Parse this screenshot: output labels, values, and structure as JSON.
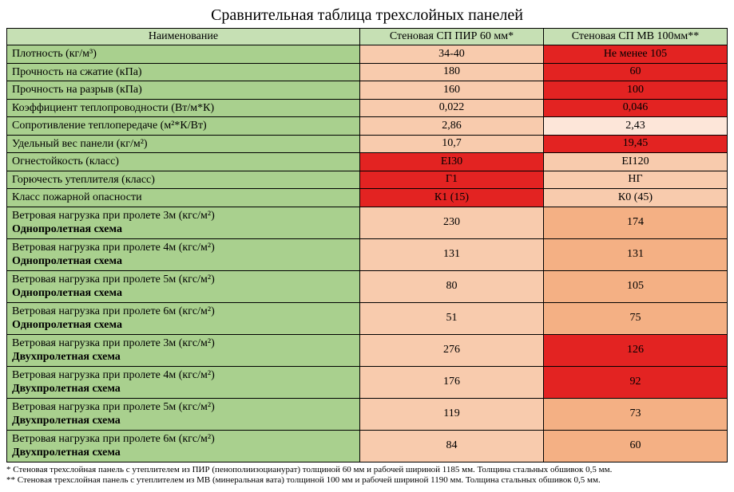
{
  "title": "Сравнительная таблица трехслойных панелей",
  "colors": {
    "header_green": "#c6e0b4",
    "label_green": "#a9d08e",
    "light_orange": "#f8cbad",
    "mid_orange": "#f4b084",
    "dark_red": "#e32322",
    "pale_pink": "#fde6d9",
    "border": "#000000",
    "text": "#000000"
  },
  "columns": {
    "name": "Наименование",
    "col_a": "Стеновая СП ПИР 60 мм*",
    "col_b": "Стеновая СП МВ 100мм**"
  },
  "rows": [
    {
      "kind": "single",
      "label": "Плотность (кг/м³)",
      "a": "34-40",
      "a_fill": "light_orange",
      "b": "Не менее 105",
      "b_fill": "dark_red"
    },
    {
      "kind": "single",
      "label": "Прочность на сжатие (кПа)",
      "a": "180",
      "a_fill": "light_orange",
      "b": "60",
      "b_fill": "dark_red"
    },
    {
      "kind": "single",
      "label": "Прочность на разрыв (кПа)",
      "a": "160",
      "a_fill": "light_orange",
      "b": "100",
      "b_fill": "dark_red"
    },
    {
      "kind": "single",
      "label": "Коэффициент теплопроводности (Вт/м*К)",
      "a": "0,022",
      "a_fill": "light_orange",
      "b": "0,046",
      "b_fill": "dark_red"
    },
    {
      "kind": "single",
      "label": "Сопротивление теплопередаче (м²*К/Вт)",
      "a": "2,86",
      "a_fill": "light_orange",
      "b": "2,43",
      "b_fill": "pale_pink"
    },
    {
      "kind": "single",
      "label": "Удельный вес панели (кг/м²)",
      "a": "10,7",
      "a_fill": "light_orange",
      "b": "19,45",
      "b_fill": "dark_red"
    },
    {
      "kind": "single",
      "label": "Огнестойкость (класс)",
      "a": "EI30",
      "a_fill": "dark_red",
      "b": "EI120",
      "b_fill": "light_orange"
    },
    {
      "kind": "single",
      "label": "Горючесть утеплителя (класс)",
      "a": "Г1",
      "a_fill": "dark_red",
      "b": "НГ",
      "b_fill": "light_orange"
    },
    {
      "kind": "single",
      "label": "Класс пожарной опасности",
      "a": "К1 (15)",
      "a_fill": "dark_red",
      "b": "К0 (45)",
      "b_fill": "light_orange"
    },
    {
      "kind": "double",
      "l1": "Ветровая нагрузка при пролете 3м (кгс/м²)",
      "l2": "Однопролетная схема",
      "a": "230",
      "a_fill": "light_orange",
      "b": "174",
      "b_fill": "mid_orange"
    },
    {
      "kind": "double",
      "l1": "Ветровая нагрузка при пролете 4м (кгс/м²)",
      "l2": "Однопролетная схема",
      "a": "131",
      "a_fill": "light_orange",
      "b": "131",
      "b_fill": "mid_orange"
    },
    {
      "kind": "double",
      "l1": "Ветровая нагрузка при пролете 5м (кгс/м²)",
      "l2": "Однопролетная схема",
      "a": "80",
      "a_fill": "light_orange",
      "b": "105",
      "b_fill": "mid_orange"
    },
    {
      "kind": "double",
      "l1": "Ветровая нагрузка при пролете 6м (кгс/м²)",
      "l2": "Однопролетная схема",
      "a": "51",
      "a_fill": "light_orange",
      "b": "75",
      "b_fill": "mid_orange"
    },
    {
      "kind": "double",
      "l1": "Ветровая нагрузка при пролете 3м (кгс/м²)",
      "l2": "Двухпролетная схема",
      "a": "276",
      "a_fill": "light_orange",
      "b": "126",
      "b_fill": "dark_red"
    },
    {
      "kind": "double",
      "l1": "Ветровая нагрузка при пролете 4м (кгс/м²)",
      "l2": "Двухпролетная схема",
      "a": "176",
      "a_fill": "light_orange",
      "b": "92",
      "b_fill": "dark_red"
    },
    {
      "kind": "double",
      "l1": "Ветровая нагрузка при пролете 5м (кгс/м²)",
      "l2": "Двухпролетная схема",
      "a": "119",
      "a_fill": "light_orange",
      "b": "73",
      "b_fill": "mid_orange"
    },
    {
      "kind": "double",
      "l1": "Ветровая нагрузка при пролете 6м (кгс/м²)",
      "l2": "Двухпролетная схема",
      "a": "84",
      "a_fill": "light_orange",
      "b": "60",
      "b_fill": "mid_orange"
    }
  ],
  "footnotes": {
    "f1": "* Стеновая трехслойная панель с утеплителем из ПИР (пенополиизоцианурат) толщиной 60 мм и рабочей шириной 1185 мм. Толщина стальных обшивок 0,5 мм.",
    "f2": "** Стеновая трехслойная панель с утеплителем из МВ (минеральная вата) толщиной 100 мм и рабочей шириной 1190 мм. Толщина стальных обшивок 0,5 мм."
  }
}
